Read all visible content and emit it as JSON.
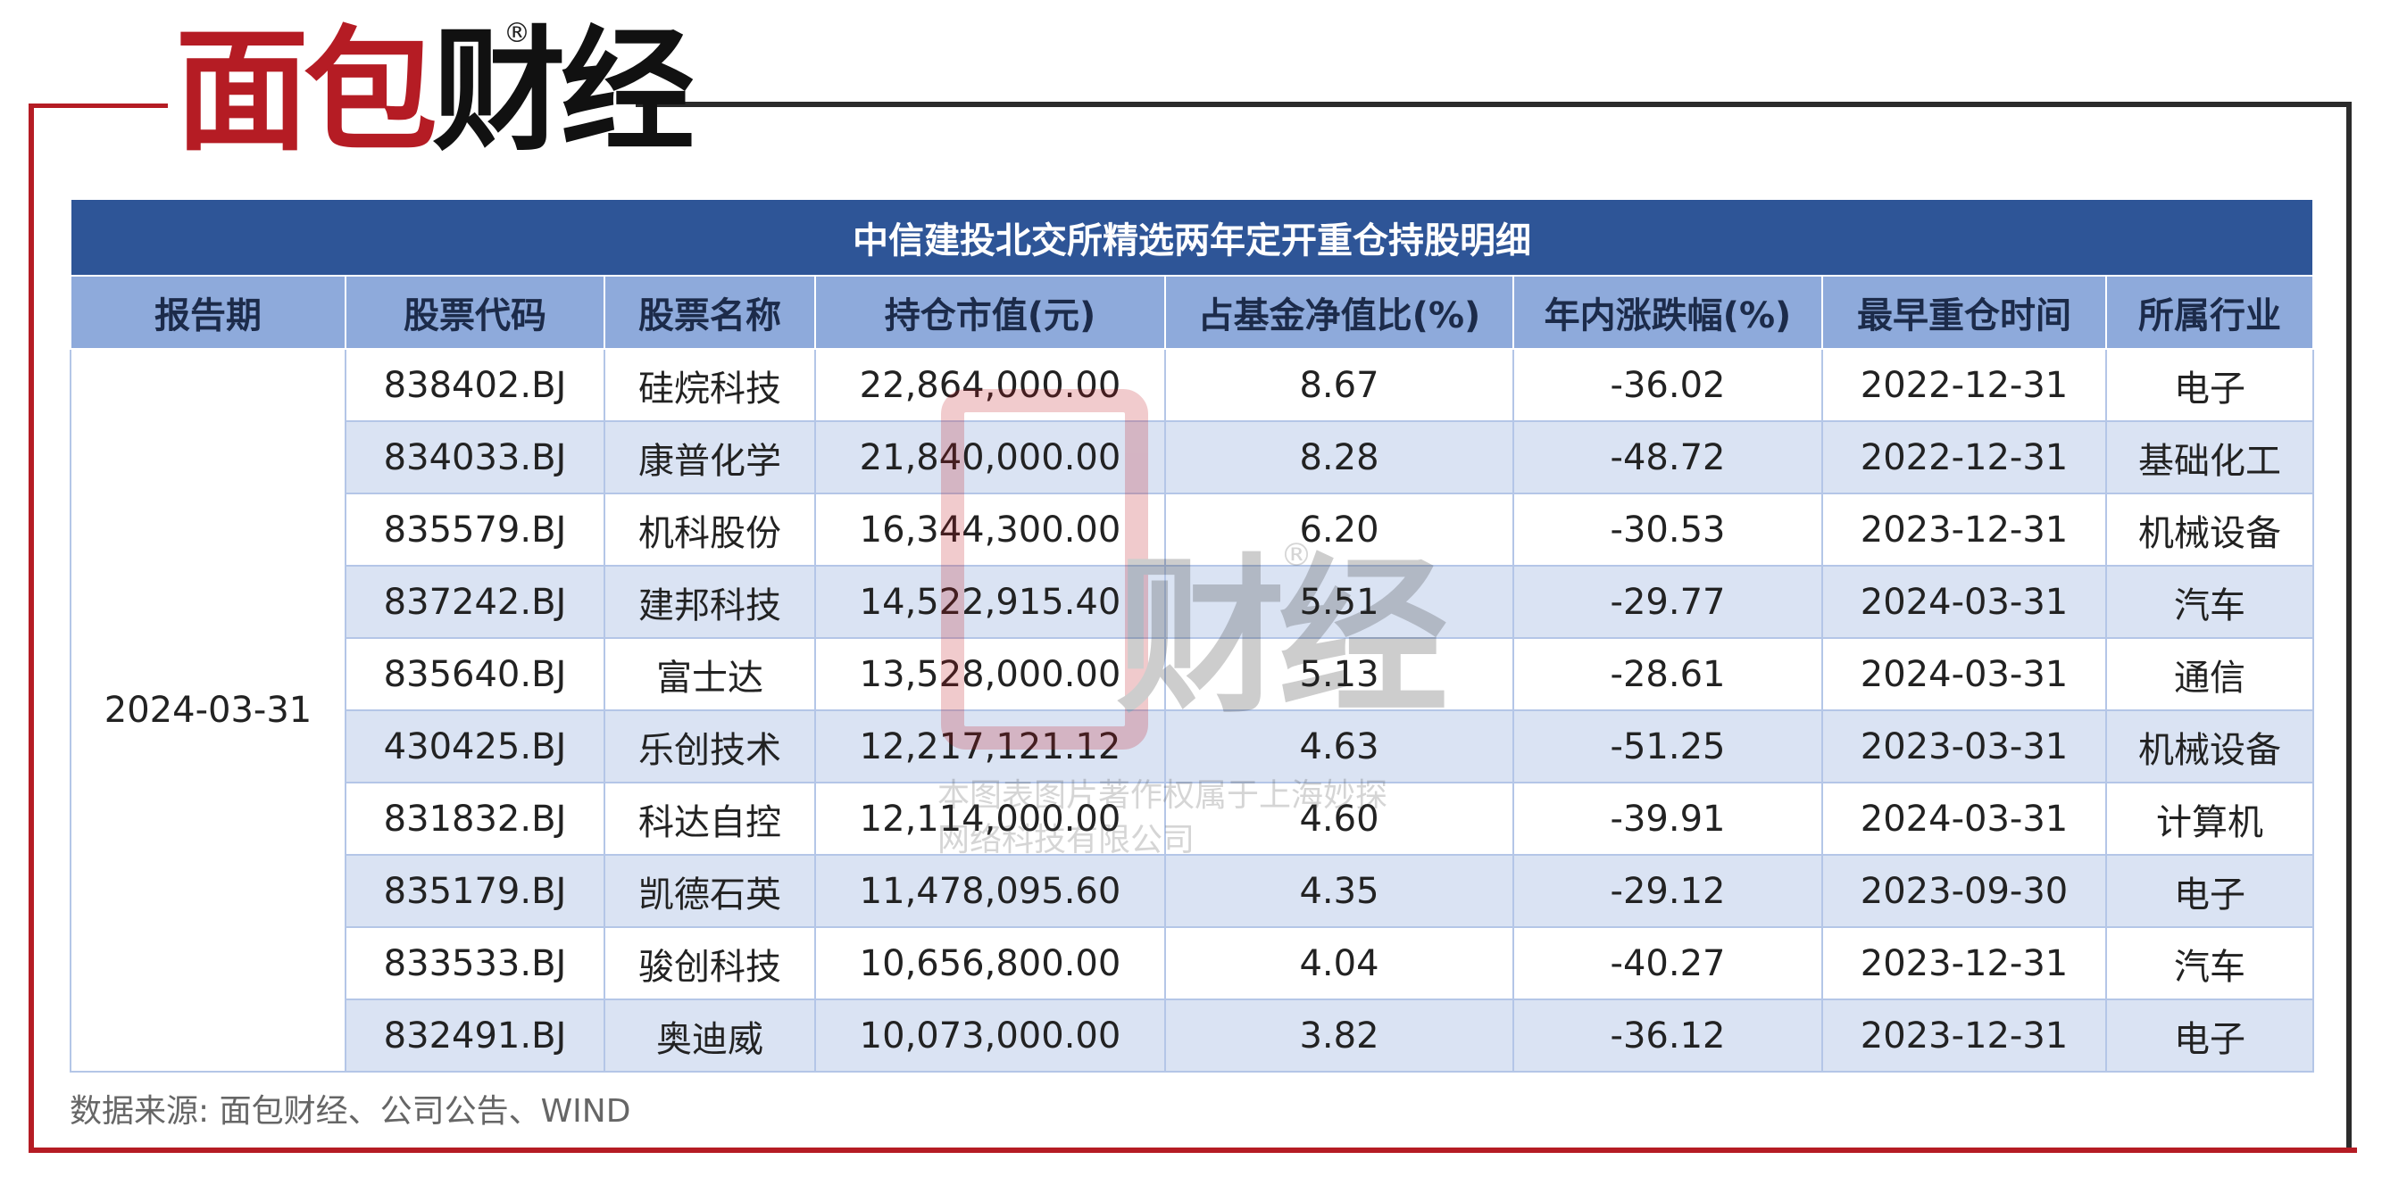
{
  "logo": {
    "text_red": "面包",
    "text_dark": "财经",
    "reg_mark": "®"
  },
  "chart_data": {
    "type": "table",
    "title": "中信建投北交所精选两年定开重仓持股明细",
    "columns": [
      "报告期",
      "股票代码",
      "股票名称",
      "持仓市值(元)",
      "占基金净值比(%)",
      "年内涨跌幅(%)",
      "最早重仓时间",
      "所属行业"
    ],
    "report_period": "2024-03-31",
    "rows": [
      [
        "838402.BJ",
        "硅烷科技",
        "22,864,000.00",
        "8.67",
        "-36.02",
        "2022-12-31",
        "电子"
      ],
      [
        "834033.BJ",
        "康普化学",
        "21,840,000.00",
        "8.28",
        "-48.72",
        "2022-12-31",
        "基础化工"
      ],
      [
        "835579.BJ",
        "机科股份",
        "16,344,300.00",
        "6.20",
        "-30.53",
        "2023-12-31",
        "机械设备"
      ],
      [
        "837242.BJ",
        "建邦科技",
        "14,522,915.40",
        "5.51",
        "-29.77",
        "2024-03-31",
        "汽车"
      ],
      [
        "835640.BJ",
        "富士达",
        "13,528,000.00",
        "5.13",
        "-28.61",
        "2024-03-31",
        "通信"
      ],
      [
        "430425.BJ",
        "乐创技术",
        "12,217,121.12",
        "4.63",
        "-51.25",
        "2023-03-31",
        "机械设备"
      ],
      [
        "831832.BJ",
        "科达自控",
        "12,114,000.00",
        "4.60",
        "-39.91",
        "2024-03-31",
        "计算机"
      ],
      [
        "835179.BJ",
        "凯德石英",
        "11,478,095.60",
        "4.35",
        "-29.12",
        "2023-09-30",
        "电子"
      ],
      [
        "833533.BJ",
        "骏创科技",
        "10,656,800.00",
        "4.04",
        "-40.27",
        "2023-12-31",
        "汽车"
      ],
      [
        "832491.BJ",
        "奥迪威",
        "10,073,000.00",
        "3.82",
        "-36.12",
        "2023-12-31",
        "电子"
      ]
    ]
  },
  "watermark": {
    "brand": "财经",
    "reg_mark": "®",
    "line1": "本图表图片著作权属于上海妙探",
    "line2": "网络科技有限公司"
  },
  "source": "数据来源: 面包财经、公司公告、WIND",
  "colors": {
    "title_bg": "#2e5597",
    "header_bg": "#8eaadb",
    "row_alt_bg": "#dae3f3",
    "frame_red": "#b51c24",
    "frame_dark": "#2b2b2b"
  }
}
